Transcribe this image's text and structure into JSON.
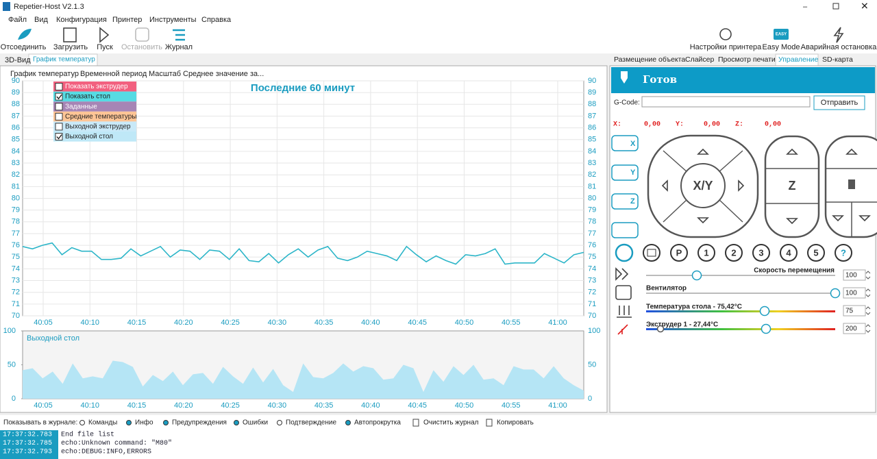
{
  "window": {
    "title": "Repetier-Host V2.1.3"
  },
  "menu": [
    "Файл",
    "Вид",
    "Конфигурация",
    "Принтер",
    "Инструменты",
    "Справка"
  ],
  "toolbar": {
    "left": [
      "Отсоединить",
      "Загрузить",
      "Пуск",
      "Остановить",
      "Журнал"
    ],
    "right": [
      "Настройки принтера",
      "Easy Mode",
      "Аварийная остановка"
    ],
    "easy_badge": "EASY"
  },
  "left_tabs": [
    "3D-Вид",
    "График температур"
  ],
  "chart_menu": [
    "График температур",
    "Временной период",
    "Масштаб",
    "Среднее значение за..."
  ],
  "temp_chart": {
    "type": "line",
    "title": "Последние 60 минут",
    "legend": [
      {
        "label": "Показать экструдер",
        "checked": false,
        "color": "#f2607f"
      },
      {
        "label": "Показать стол",
        "checked": true,
        "color": "#56dbe3"
      },
      {
        "label": "Заданные",
        "checked": false,
        "color": "#a685b5"
      },
      {
        "label": "Средние температуры",
        "checked": false,
        "color": "#ffc596"
      },
      {
        "label": "Выходной экструдер",
        "checked": false,
        "color": "#c9e9f8"
      },
      {
        "label": "Выходной стол",
        "checked": true,
        "color": "#bfe8f7"
      }
    ],
    "xticks": [
      "40:05",
      "40:10",
      "40:15",
      "40:20",
      "40:25",
      "40:30",
      "40:35",
      "40:40",
      "40:45",
      "40:50",
      "40:55",
      "41:00"
    ],
    "ylim": [
      70,
      90
    ],
    "yticks": [
      70,
      71,
      72,
      73,
      74,
      75,
      76,
      77,
      78,
      79,
      80,
      81,
      82,
      83,
      84,
      85,
      86,
      87,
      88,
      89,
      90
    ],
    "color": "#2bb5c8",
    "grid": true,
    "values": [
      75.9,
      75.7,
      76.0,
      76.2,
      75.2,
      75.8,
      75.5,
      75.5,
      74.8,
      74.8,
      74.9,
      75.7,
      75.1,
      75.5,
      75.9,
      75.0,
      75.6,
      75.5,
      74.8,
      75.6,
      75.5,
      74.8,
      75.7,
      74.7,
      74.6,
      75.3,
      74.5,
      75.2,
      75.7,
      75.0,
      75.6,
      75.9,
      74.9,
      74.7,
      75.0,
      75.5,
      75.3,
      75.1,
      74.7,
      75.9,
      75.2,
      74.6,
      75.1,
      74.7,
      74.4,
      75.2,
      75.1,
      75.3,
      75.7,
      74.4,
      74.5,
      74.5,
      74.5,
      75.3,
      74.9,
      74.5,
      75.2,
      75.4
    ]
  },
  "output_chart": {
    "type": "area",
    "label": "Выходной стол",
    "ylim": [
      0,
      100
    ],
    "yticks": [
      0,
      50,
      100
    ],
    "color": "#b5e5f5",
    "values": [
      42,
      45,
      30,
      40,
      22,
      52,
      30,
      33,
      30,
      56,
      54,
      47,
      18,
      35,
      26,
      40,
      20,
      36,
      38,
      22,
      47,
      33,
      22,
      46,
      24,
      44,
      20,
      10,
      52,
      32,
      30,
      38,
      52,
      40,
      48,
      45,
      28,
      30,
      50,
      45,
      10,
      42,
      25,
      48,
      35,
      50,
      28,
      30,
      20,
      48,
      43,
      43,
      30,
      48,
      30,
      20,
      12
    ]
  },
  "right_tabs": [
    "Размещение объекта",
    "Слайсер",
    "Просмотр печати",
    "Управление",
    "SD-карта"
  ],
  "status": "Готов",
  "gcode": {
    "label": "G-Code:",
    "button": "Отправить"
  },
  "coords": [
    {
      "axis": "X:",
      "value": "0,00"
    },
    {
      "axis": "Y:",
      "value": "0,00"
    },
    {
      "axis": "Z:",
      "value": "0,00"
    }
  ],
  "home": [
    "X",
    "Y",
    "Z"
  ],
  "jog": {
    "xy": "X/Y",
    "z": "Z"
  },
  "buttons": [
    "P",
    "1",
    "2",
    "3",
    "4",
    "5",
    "?"
  ],
  "sliders": [
    {
      "label": "Скорость перемещения",
      "value": 100
    },
    {
      "label": "Вентилятор",
      "value": 100
    },
    {
      "label": "Температура стола - 75,42°C",
      "value": 75
    },
    {
      "label": "Экструдер 1 - 27,44°C",
      "value": 200
    }
  ],
  "log": {
    "label": "Показывать в журнале:",
    "filters": [
      {
        "label": "Команды",
        "on": false
      },
      {
        "label": "Инфо",
        "on": true
      },
      {
        "label": "Предупреждения",
        "on": true
      },
      {
        "label": "Ошибки",
        "on": true
      },
      {
        "label": "Подтверждение",
        "on": false
      },
      {
        "label": "Автопрокрутка",
        "on": true
      }
    ],
    "actions": [
      "Очистить журнал",
      "Копировать"
    ],
    "lines": [
      {
        "time": "17:37:32.783",
        "text": "End file list"
      },
      {
        "time": "17:37:32.785",
        "text": "echo:Unknown command: \"M80\""
      },
      {
        "time": "17:37:32.793",
        "text": "echo:DEBUG:INFO,ERRORS"
      }
    ]
  }
}
